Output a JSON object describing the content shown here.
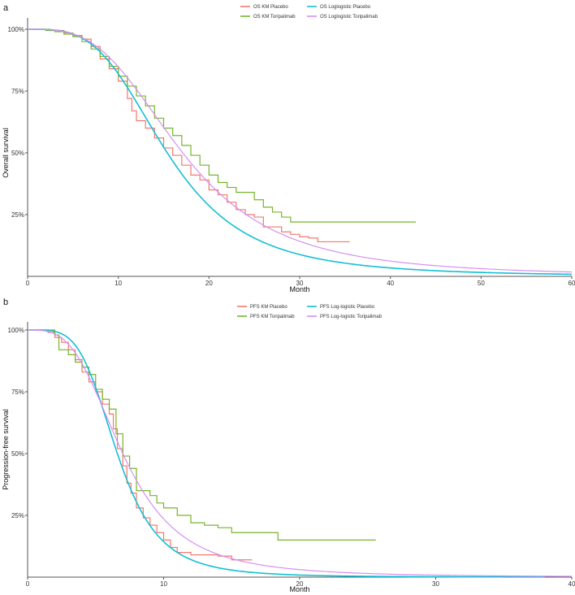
{
  "chart_data": [
    {
      "panel_label": "a",
      "type": "line",
      "ylabel": "Overall survival",
      "xlabel": "Month",
      "xlim": [
        0,
        60
      ],
      "ylim": [
        0,
        1
      ],
      "x_ticks": [
        0,
        10,
        20,
        30,
        40,
        50,
        60
      ],
      "y_ticks": [
        {
          "v": 0.25,
          "label": "25%"
        },
        {
          "v": 0.5,
          "label": "50%"
        },
        {
          "v": 0.75,
          "label": "75%"
        },
        {
          "v": 1.0,
          "label": "100%"
        }
      ],
      "legend": [
        {
          "name": "OS KM Placebo",
          "color": "#f4796d"
        },
        {
          "name": "OS Loglogistic Placebo",
          "color": "#14bfd4"
        },
        {
          "name": "OS KM Toripalimab",
          "color": "#77b52b"
        },
        {
          "name": "OS Loglogistic Toripalimab",
          "color": "#d58ff0"
        }
      ],
      "series": [
        {
          "name": "OS KM Placebo",
          "kind": "step",
          "color": "#f4796d",
          "x": [
            0,
            2.5,
            4,
            5,
            6,
            7,
            8,
            9,
            10,
            11,
            11.5,
            12,
            13,
            14,
            15,
            16,
            17,
            18,
            19,
            20,
            21,
            22,
            23,
            24,
            25,
            26,
            28,
            29,
            30,
            31,
            32,
            35.5
          ],
          "y": [
            1,
            0.995,
            0.985,
            0.975,
            0.96,
            0.93,
            0.88,
            0.84,
            0.79,
            0.72,
            0.67,
            0.63,
            0.6,
            0.56,
            0.52,
            0.49,
            0.45,
            0.41,
            0.39,
            0.35,
            0.33,
            0.3,
            0.27,
            0.25,
            0.24,
            0.2,
            0.18,
            0.17,
            0.16,
            0.155,
            0.14,
            0.14
          ]
        },
        {
          "name": "OS KM Toripalimab",
          "kind": "step",
          "color": "#77b52b",
          "x": [
            0,
            2,
            3,
            4,
            5,
            6,
            7,
            8,
            9,
            10,
            11,
            12,
            13,
            14,
            15,
            16,
            17,
            18,
            19,
            20,
            21,
            22,
            23,
            24,
            25,
            26,
            27,
            28,
            29,
            30,
            42.8
          ],
          "y": [
            1,
            0.995,
            0.99,
            0.98,
            0.97,
            0.95,
            0.92,
            0.89,
            0.85,
            0.81,
            0.77,
            0.73,
            0.69,
            0.64,
            0.6,
            0.57,
            0.53,
            0.49,
            0.45,
            0.41,
            0.38,
            0.36,
            0.34,
            0.34,
            0.31,
            0.28,
            0.26,
            0.24,
            0.22,
            0.22,
            0.22
          ]
        },
        {
          "name": "OS Loglogistic Placebo",
          "kind": "smooth",
          "color": "#14bfd4",
          "alpha": 15.4,
          "beta": 3.5,
          "xmax": 60
        },
        {
          "name": "OS Loglogistic Toripalimab",
          "kind": "smooth",
          "color": "#d58ff0",
          "alpha": 17.1,
          "beta": 3.2,
          "xmax": 60
        }
      ]
    },
    {
      "panel_label": "b",
      "type": "line",
      "ylabel": "Progression-free survival",
      "xlabel": "Month",
      "xlim": [
        0,
        40
      ],
      "ylim": [
        0,
        1
      ],
      "x_ticks": [
        0,
        10,
        20,
        30,
        40
      ],
      "y_ticks": [
        {
          "v": 0.25,
          "label": "25%"
        },
        {
          "v": 0.5,
          "label": "50%"
        },
        {
          "v": 0.75,
          "label": "75%"
        },
        {
          "v": 1.0,
          "label": "100%"
        }
      ],
      "legend": [
        {
          "name": "PFS KM Placebo",
          "color": "#f4796d"
        },
        {
          "name": "PFS Log-logistic Placebo",
          "color": "#14bfd4"
        },
        {
          "name": "PFS KM Toripalimab",
          "color": "#77b52b"
        },
        {
          "name": "PFS Log-logistic Toripalimab",
          "color": "#d58ff0"
        }
      ],
      "series": [
        {
          "name": "PFS KM Placebo",
          "kind": "step",
          "color": "#f4796d",
          "x": [
            0,
            1.5,
            2,
            2.5,
            3,
            3.5,
            4,
            4.5,
            5,
            5.5,
            6,
            6.3,
            6.6,
            7,
            7.3,
            7.6,
            8,
            8.5,
            9,
            9.5,
            10,
            10.5,
            11,
            12,
            14,
            15,
            16.5
          ],
          "y": [
            1,
            0.99,
            0.97,
            0.95,
            0.92,
            0.88,
            0.83,
            0.79,
            0.75,
            0.7,
            0.66,
            0.6,
            0.52,
            0.45,
            0.38,
            0.34,
            0.28,
            0.24,
            0.21,
            0.18,
            0.15,
            0.12,
            0.1,
            0.09,
            0.085,
            0.07,
            0.07
          ]
        },
        {
          "name": "PFS KM Toripalimab",
          "kind": "step",
          "color": "#77b52b",
          "x": [
            0,
            2,
            2.3,
            3,
            3.5,
            4,
            4.5,
            5,
            5.5,
            6,
            6.5,
            7,
            7.5,
            8,
            9,
            9.5,
            10,
            11,
            12,
            13,
            14,
            15,
            16,
            18.4,
            25.6
          ],
          "y": [
            1,
            0.98,
            0.92,
            0.9,
            0.87,
            0.85,
            0.82,
            0.76,
            0.72,
            0.68,
            0.58,
            0.49,
            0.44,
            0.35,
            0.33,
            0.3,
            0.28,
            0.25,
            0.22,
            0.21,
            0.2,
            0.18,
            0.18,
            0.15,
            0.15
          ]
        },
        {
          "name": "PFS Log-logistic Placebo",
          "kind": "smooth",
          "color": "#14bfd4",
          "alpha": 6.6,
          "beta": 4.3,
          "xmax": 38
        },
        {
          "name": "PFS Log-logistic Toripalimab",
          "kind": "smooth",
          "color": "#d58ff0",
          "alpha": 7.0,
          "beta": 3.3,
          "xmax": 40
        }
      ]
    }
  ]
}
